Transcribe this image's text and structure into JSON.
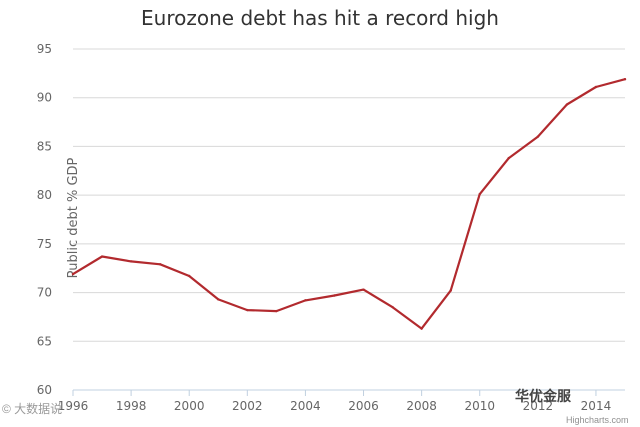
{
  "chart_data": {
    "type": "line",
    "title": "Eurozone debt has hit a record high",
    "xlabel": "",
    "ylabel": "Public debt % GDP",
    "xlim": [
      1996,
      2015
    ],
    "ylim": [
      60,
      95
    ],
    "yticks": [
      60,
      65,
      70,
      75,
      80,
      85,
      90,
      95
    ],
    "xticks": [
      "1996",
      "1998",
      "2000",
      "2002",
      "2004",
      "2006",
      "2008",
      "2010",
      "2012",
      "2014"
    ],
    "grid": true,
    "line_color": "#b22a2e",
    "x": [
      1996,
      1997,
      1998,
      1999,
      2000,
      2001,
      2002,
      2003,
      2004,
      2005,
      2006,
      2007,
      2008,
      2009,
      2010,
      2011,
      2012,
      2013,
      2014,
      2015
    ],
    "series": [
      {
        "values": [
          71.9,
          73.7,
          73.2,
          72.9,
          71.7,
          69.3,
          68.2,
          68.1,
          69.2,
          69.7,
          70.3,
          68.5,
          66.3,
          70.2,
          80.1,
          83.8,
          86.0,
          89.3,
          91.1,
          91.9
        ]
      }
    ]
  },
  "watermark_left": "© 大数据说",
  "watermark_right": "华优金服",
  "credits": "Highcharts.com"
}
